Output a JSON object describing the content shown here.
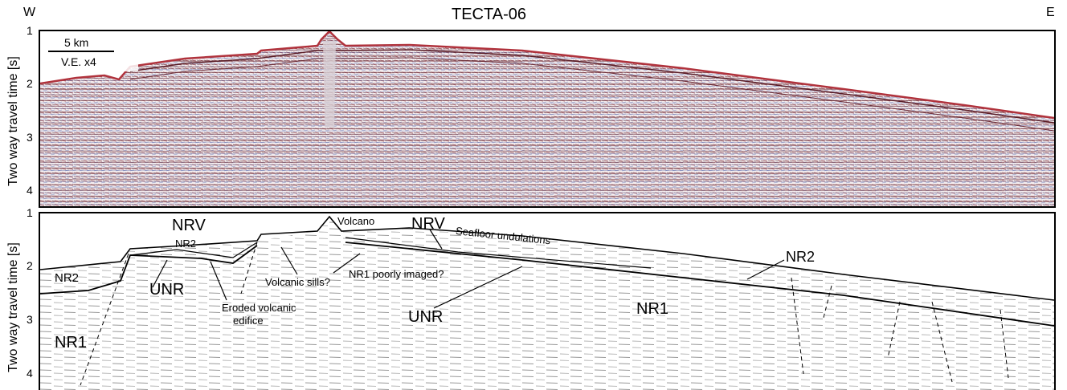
{
  "header": {
    "title": "TECTA-06",
    "west": "W",
    "east": "E"
  },
  "top_panel": {
    "ylabel": "Two way travel time [s]",
    "ticks": [
      "1",
      "2",
      "3",
      "4"
    ],
    "scale_bar": "5 km",
    "vertical_exaggeration": "V.E. x4"
  },
  "bottom_panel": {
    "ylabel": "Two way travel time [s]",
    "ticks": [
      "1",
      "2",
      "3",
      "4"
    ],
    "labels": {
      "nrv_left": "NRV",
      "nrv_right": "NRV",
      "volcano": "Volcano",
      "seafloor": "Seafloor undulations",
      "nr2_left": "NR2",
      "nr2_mid": "NR2",
      "nr2_right": "NR2",
      "unr_left": "UNR",
      "unr_mid": "UNR",
      "nr1_left": "NR1",
      "nr1_mid": "NR1",
      "eroded": "Eroded volcanic",
      "edifice": "edifice",
      "sills": "Volcanic sills?",
      "poorly": "NR1 poorly imaged?"
    }
  },
  "colors": {
    "seismic_red": "#8b3a44",
    "seismic_blue": "#2c3f8c",
    "line": "#000000"
  }
}
